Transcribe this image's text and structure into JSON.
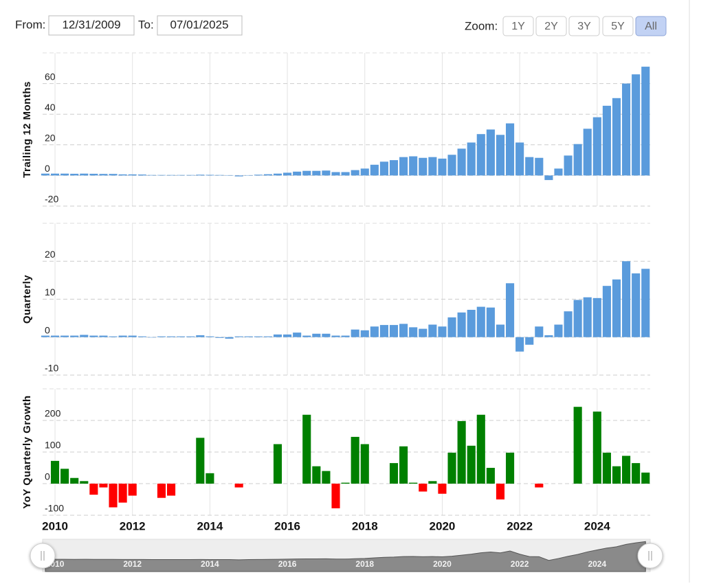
{
  "controls": {
    "from_label": "From:",
    "from_value": "12/31/2009",
    "to_label": "To:",
    "to_value": "07/01/2025",
    "zoom_label": "Zoom:",
    "zoom_buttons": [
      "1Y",
      "2Y",
      "3Y",
      "5Y",
      "All"
    ],
    "zoom_selected": "All"
  },
  "chart_data": [
    {
      "type": "bar",
      "ylabel": "Trailing 12 Months",
      "color": "#5a9bdc",
      "grid": true,
      "x": [
        2009.75,
        2010,
        2010.25,
        2010.5,
        2010.75,
        2011,
        2011.25,
        2011.5,
        2011.75,
        2012,
        2012.25,
        2012.5,
        2012.75,
        2013,
        2013.25,
        2013.5,
        2013.75,
        2014,
        2014.25,
        2014.5,
        2014.75,
        2015,
        2015.25,
        2015.5,
        2015.75,
        2016,
        2016.25,
        2016.5,
        2016.75,
        2017,
        2017.25,
        2017.5,
        2017.75,
        2018,
        2018.25,
        2018.5,
        2018.75,
        2019,
        2019.25,
        2019.5,
        2019.75,
        2020,
        2020.25,
        2020.5,
        2020.75,
        2021,
        2021.25,
        2021.5,
        2021.75,
        2022,
        2022.25,
        2022.5,
        2022.75,
        2023,
        2023.25,
        2023.5,
        2023.75,
        2024,
        2024.25,
        2024.5,
        2024.75,
        2025,
        2025.25
      ],
      "values": [
        1.2,
        1.2,
        1.2,
        1.1,
        1.2,
        1.1,
        1.0,
        1.0,
        0.7,
        0.7,
        0.6,
        0.3,
        0.3,
        0.3,
        0.3,
        0.3,
        0.5,
        0.4,
        0.3,
        0.2,
        -0.6,
        0.2,
        0.5,
        0.8,
        1.2,
        1.8,
        2.5,
        3,
        3,
        3.2,
        2.2,
        2.2,
        3.5,
        4.5,
        7,
        9,
        10,
        12,
        12.5,
        11.5,
        12,
        11,
        13.5,
        17.5,
        21.5,
        27,
        30,
        26.5,
        34,
        21.5,
        12,
        11.5,
        -3,
        4.5,
        13,
        20.5,
        30.5,
        38,
        45.5,
        50.5,
        60,
        66,
        71
      ],
      "xlim": [
        2009.68,
        2025.37
      ],
      "xticks": [
        2010,
        2012,
        2014,
        2016,
        2018,
        2020,
        2022,
        2024
      ],
      "ylim": [
        -20,
        80
      ],
      "yticks": [
        -20,
        0,
        20,
        40,
        60
      ]
    },
    {
      "type": "bar",
      "ylabel": "Quarterly",
      "color": "#5a9bdc",
      "grid": true,
      "x": [
        2009.75,
        2010,
        2010.25,
        2010.5,
        2010.75,
        2011,
        2011.25,
        2011.5,
        2011.75,
        2012,
        2012.25,
        2012.5,
        2012.75,
        2013,
        2013.25,
        2013.5,
        2013.75,
        2014,
        2014.25,
        2014.5,
        2014.75,
        2015,
        2015.25,
        2015.5,
        2015.75,
        2016,
        2016.25,
        2016.5,
        2016.75,
        2017,
        2017.25,
        2017.5,
        2017.75,
        2018,
        2018.25,
        2018.5,
        2018.75,
        2019,
        2019.25,
        2019.5,
        2019.75,
        2020,
        2020.25,
        2020.5,
        2020.75,
        2021,
        2021.25,
        2021.5,
        2021.75,
        2022,
        2022.25,
        2022.5,
        2022.75,
        2023,
        2023.25,
        2023.5,
        2023.75,
        2024,
        2024.25,
        2024.5,
        2024.75,
        2025,
        2025.25
      ],
      "values": [
        0.4,
        0.4,
        0.4,
        0.4,
        0.6,
        0.4,
        0.4,
        0.2,
        0.4,
        0.4,
        0.2,
        -0.1,
        0.2,
        0.2,
        0.2,
        0.2,
        0.5,
        0.2,
        -0.2,
        -0.4,
        0.2,
        0.2,
        0.2,
        0.2,
        0.7,
        0.7,
        1.2,
        0.4,
        0.9,
        0.9,
        0.4,
        0.4,
        2,
        1.8,
        2.8,
        3.2,
        3.2,
        3.5,
        2.6,
        2.2,
        3.3,
        2.8,
        5.2,
        6.5,
        7.2,
        8,
        7.8,
        3.3,
        14.2,
        -3.8,
        -2,
        2.8,
        0.5,
        3.3,
        6.8,
        9.8,
        10.5,
        10.3,
        13.5,
        15.2,
        20,
        16.8,
        18
      ],
      "xlim": [
        2009.68,
        2025.37
      ],
      "xticks": [
        2010,
        2012,
        2014,
        2016,
        2018,
        2020,
        2022,
        2024
      ],
      "ylim": [
        -10,
        30
      ],
      "yticks": [
        -10,
        0,
        10,
        20
      ]
    },
    {
      "type": "bar",
      "ylabel": "YoY Quarterly Growth",
      "color_positive": "#008000",
      "color_negative": "#ff0000",
      "grid": true,
      "x": [
        2009.75,
        2010,
        2010.25,
        2010.5,
        2010.75,
        2011,
        2011.25,
        2011.5,
        2011.75,
        2012,
        2012.25,
        2012.5,
        2012.75,
        2013,
        2013.25,
        2013.5,
        2013.75,
        2014,
        2014.25,
        2014.5,
        2014.75,
        2015,
        2015.25,
        2015.5,
        2015.75,
        2016,
        2016.25,
        2016.5,
        2016.75,
        2017,
        2017.25,
        2017.5,
        2017.75,
        2018,
        2018.25,
        2018.5,
        2018.75,
        2019,
        2019.25,
        2019.5,
        2019.75,
        2020,
        2020.25,
        2020.5,
        2020.75,
        2021,
        2021.25,
        2021.5,
        2021.75,
        2022,
        2022.25,
        2022.5,
        2022.75,
        2023,
        2023.25,
        2023.5,
        2023.75,
        2024,
        2024.25,
        2024.5,
        2024.75,
        2025,
        2025.25
      ],
      "values": [
        null,
        72,
        47,
        18,
        8,
        -35,
        -12,
        -75,
        -60,
        -38,
        null,
        null,
        -45,
        -38,
        null,
        null,
        145,
        33,
        null,
        null,
        -12,
        null,
        null,
        null,
        125,
        null,
        null,
        218,
        55,
        40,
        -78,
        3,
        148,
        125,
        null,
        null,
        65,
        118,
        3,
        -25,
        8,
        -32,
        98,
        198,
        120,
        218,
        50,
        -50,
        98,
        null,
        null,
        -12,
        null,
        null,
        null,
        243,
        null,
        228,
        98,
        55,
        88,
        65,
        35
      ],
      "xlim": [
        2009.68,
        2025.37
      ],
      "xticks": [
        2010,
        2012,
        2014,
        2016,
        2018,
        2020,
        2022,
        2024
      ],
      "ylim": [
        -100,
        300
      ],
      "yticks": [
        -100,
        0,
        100,
        200
      ]
    }
  ]
}
